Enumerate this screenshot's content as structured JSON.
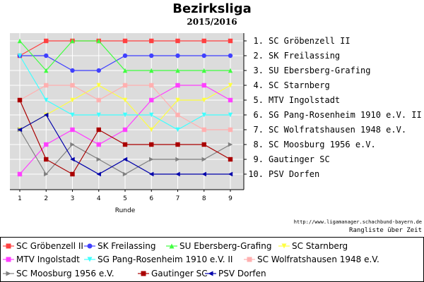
{
  "chart_data": {
    "type": "line",
    "title": "Bezirksliga",
    "subtitle": "2015/2016",
    "xlabel": "Runde",
    "x": [
      1,
      2,
      3,
      4,
      5,
      6,
      7,
      8,
      9
    ],
    "ylim": [
      0.5,
      10.5
    ],
    "y_inverted": true,
    "grid": true,
    "right_axis_labels": [
      "1. SC Gröbenzell II",
      "2. SK Freilassing",
      "3. SU Ebersberg-Grafing",
      "4. SC Starnberg",
      "5. MTV Ingolstadt",
      "6. SG Pang-Rosenheim 1910 e.V. II",
      "7. SC Wolfratshausen 1948 e.V.",
      "8. SC Moosburg 1956 e.V.",
      "9. Gautinger SC",
      "10. PSV Dorfen"
    ],
    "legend_position": "bottom",
    "series": [
      {
        "name": "SC Gröbenzell II",
        "color": "#ff4040",
        "marker": "square",
        "values": [
          2,
          1,
          1,
          1,
          1,
          1,
          1,
          1,
          1
        ]
      },
      {
        "name": "SK Freilassing",
        "color": "#4040ff",
        "marker": "circle",
        "values": [
          2,
          2,
          3,
          3,
          2,
          2,
          2,
          2,
          2
        ]
      },
      {
        "name": "SU Ebersberg-Grafing",
        "color": "#40ff40",
        "marker": "triangle-up",
        "values": [
          1,
          3,
          1,
          1,
          3,
          3,
          3,
          3,
          3
        ]
      },
      {
        "name": "SC Starnberg",
        "color": "#ffff40",
        "marker": "triangle-down",
        "values": [
          7,
          6,
          5,
          4,
          5,
          7,
          5,
          5,
          4
        ]
      },
      {
        "name": "MTV Ingolstadt",
        "color": "#ff40ff",
        "marker": "square",
        "values": [
          10,
          8,
          7,
          8,
          7,
          5,
          4,
          4,
          5
        ]
      },
      {
        "name": "SG Pang-Rosenheim 1910 e.V. II",
        "color": "#40ffff",
        "marker": "triangle-down",
        "values": [
          2,
          5,
          6,
          6,
          6,
          6,
          7,
          6,
          6
        ]
      },
      {
        "name": "SC Wolfratshausen 1948 e.V.",
        "color": "#ffb0b0",
        "marker": "square",
        "values": [
          5,
          4,
          4,
          5,
          4,
          4,
          6,
          7,
          7
        ]
      },
      {
        "name": "SC Moosburg 1956 e.V.",
        "color": "#808080",
        "marker": "triangle-right",
        "values": [
          7,
          10,
          8,
          9,
          10,
          9,
          9,
          9,
          8
        ]
      },
      {
        "name": "Gautinger SC",
        "color": "#aa0000",
        "marker": "square",
        "values": [
          5,
          9,
          10,
          7,
          8,
          8,
          8,
          8,
          9
        ]
      },
      {
        "name": "PSV Dorfen",
        "color": "#0000aa",
        "marker": "triangle-left",
        "values": [
          7,
          6,
          9,
          10,
          9,
          10,
          10,
          10,
          10
        ]
      }
    ]
  },
  "source_url": "http://www.ligamanager.schachbund-bayern.de",
  "caption": "Rangliste über Zeit"
}
